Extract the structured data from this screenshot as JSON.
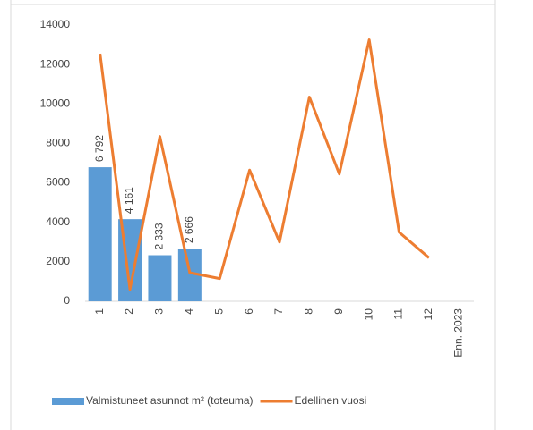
{
  "chart_data": {
    "type": "bar-line",
    "categories": [
      "1",
      "2",
      "3",
      "4",
      "5",
      "6",
      "7",
      "8",
      "9",
      "10",
      "11",
      "12",
      "Enn. 2023"
    ],
    "series": [
      {
        "name": "Valmistuneet asunnot m² (toteuma)",
        "type": "bar",
        "color": "#5b9bd5",
        "values": [
          6792,
          4161,
          2333,
          2666,
          null,
          null,
          null,
          null,
          null,
          null,
          null,
          null,
          null
        ],
        "value_labels": [
          "6 792",
          "4 161",
          "2 333",
          "2 666",
          null,
          null,
          null,
          null,
          null,
          null,
          null,
          null,
          null
        ]
      },
      {
        "name": "Edellinen vuosi",
        "type": "line",
        "color": "#ed7d31",
        "values": [
          12550,
          600,
          8350,
          1450,
          1150,
          6650,
          3000,
          10350,
          6450,
          13250,
          3500,
          2200,
          null
        ]
      }
    ],
    "ylim": [
      0,
      14000
    ],
    "yticks": [
      0,
      2000,
      4000,
      6000,
      8000,
      10000,
      12000,
      14000
    ],
    "grid": false,
    "legend": "bottom"
  }
}
